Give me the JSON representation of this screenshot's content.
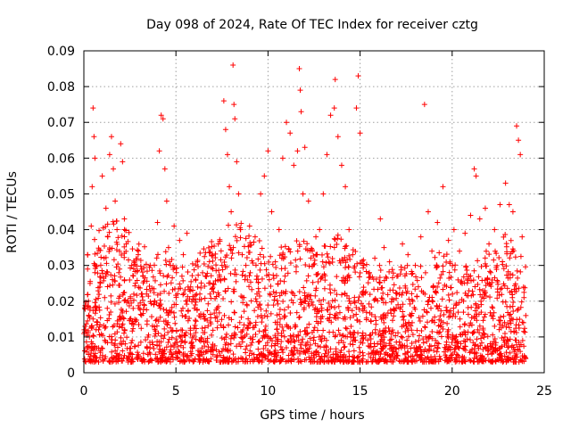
{
  "chart_data": {
    "type": "scatter",
    "title": "Day 098 of 2024, Rate Of TEC Index for receiver cztg",
    "xlabel": "GPS time / hours",
    "ylabel": "ROTI / TECUs",
    "xlim": [
      0,
      25
    ],
    "ylim": [
      0,
      0.09
    ],
    "xticks": [
      0,
      5,
      10,
      15,
      20,
      25
    ],
    "yticks": [
      0,
      0.01,
      0.02,
      0.03,
      0.04,
      0.05,
      0.06,
      0.07,
      0.08,
      0.09
    ],
    "xtick_labels": [
      "0",
      "5",
      "10",
      "15",
      "20",
      "25"
    ],
    "ytick_labels": [
      "0",
      "0.01",
      "0.02",
      "0.03",
      "0.04",
      "0.05",
      "0.06",
      "0.07",
      "0.08",
      "0.09"
    ],
    "grid": true,
    "marker": "+",
    "color": "#ff0000",
    "series": [
      {
        "name": "ROTI",
        "points": [
          [
            0.1,
            0.012
          ],
          [
            0.15,
            0.007
          ],
          [
            0.2,
            0.033
          ],
          [
            0.25,
            0.02
          ],
          [
            0.3,
            0.01
          ],
          [
            0.4,
            0.041
          ],
          [
            0.45,
            0.052
          ],
          [
            0.5,
            0.074
          ],
          [
            0.55,
            0.066
          ],
          [
            0.6,
            0.06
          ],
          [
            0.6,
            0.028
          ],
          [
            0.7,
            0.018
          ],
          [
            0.8,
            0.012
          ],
          [
            0.9,
            0.025
          ],
          [
            1.0,
            0.055
          ],
          [
            1.1,
            0.032
          ],
          [
            1.2,
            0.046
          ],
          [
            1.3,
            0.038
          ],
          [
            1.4,
            0.061
          ],
          [
            1.5,
            0.066
          ],
          [
            1.6,
            0.057
          ],
          [
            1.7,
            0.048
          ],
          [
            1.8,
            0.04
          ],
          [
            1.9,
            0.028
          ],
          [
            2.0,
            0.064
          ],
          [
            2.1,
            0.059
          ],
          [
            2.2,
            0.043
          ],
          [
            2.3,
            0.036
          ],
          [
            2.4,
            0.02
          ],
          [
            2.5,
            0.015
          ],
          [
            2.6,
            0.03
          ],
          [
            2.8,
            0.025
          ],
          [
            3.0,
            0.018
          ],
          [
            3.2,
            0.027
          ],
          [
            3.4,
            0.022
          ],
          [
            3.6,
            0.03
          ],
          [
            3.8,
            0.019
          ],
          [
            4.0,
            0.042
          ],
          [
            4.1,
            0.062
          ],
          [
            4.2,
            0.072
          ],
          [
            4.3,
            0.071
          ],
          [
            4.4,
            0.057
          ],
          [
            4.5,
            0.048
          ],
          [
            4.6,
            0.035
          ],
          [
            4.7,
            0.03
          ],
          [
            4.9,
            0.041
          ],
          [
            5.2,
            0.037
          ],
          [
            5.4,
            0.033
          ],
          [
            5.6,
            0.039
          ],
          [
            5.8,
            0.024
          ],
          [
            6.0,
            0.018
          ],
          [
            6.3,
            0.022
          ],
          [
            6.6,
            0.027
          ],
          [
            7.0,
            0.029
          ],
          [
            7.3,
            0.036
          ],
          [
            7.5,
            0.03
          ],
          [
            7.6,
            0.076
          ],
          [
            7.7,
            0.068
          ],
          [
            7.8,
            0.061
          ],
          [
            7.9,
            0.052
          ],
          [
            8.0,
            0.045
          ],
          [
            8.1,
            0.086
          ],
          [
            8.15,
            0.075
          ],
          [
            8.2,
            0.071
          ],
          [
            8.3,
            0.059
          ],
          [
            8.4,
            0.05
          ],
          [
            8.5,
            0.04
          ],
          [
            8.6,
            0.033
          ],
          [
            8.8,
            0.03
          ],
          [
            9.0,
            0.041
          ],
          [
            9.3,
            0.038
          ],
          [
            9.6,
            0.05
          ],
          [
            9.8,
            0.055
          ],
          [
            10.0,
            0.062
          ],
          [
            10.2,
            0.045
          ],
          [
            10.4,
            0.031
          ],
          [
            10.6,
            0.04
          ],
          [
            10.8,
            0.06
          ],
          [
            11.0,
            0.07
          ],
          [
            11.2,
            0.067
          ],
          [
            11.4,
            0.058
          ],
          [
            11.6,
            0.062
          ],
          [
            11.7,
            0.085
          ],
          [
            11.75,
            0.079
          ],
          [
            11.8,
            0.073
          ],
          [
            11.9,
            0.05
          ],
          [
            12.0,
            0.063
          ],
          [
            12.2,
            0.048
          ],
          [
            12.4,
            0.034
          ],
          [
            12.6,
            0.038
          ],
          [
            12.8,
            0.04
          ],
          [
            13.0,
            0.05
          ],
          [
            13.2,
            0.061
          ],
          [
            13.4,
            0.072
          ],
          [
            13.6,
            0.074
          ],
          [
            13.65,
            0.082
          ],
          [
            13.8,
            0.066
          ],
          [
            14.0,
            0.058
          ],
          [
            14.2,
            0.052
          ],
          [
            14.4,
            0.04
          ],
          [
            14.6,
            0.033
          ],
          [
            14.8,
            0.074
          ],
          [
            14.9,
            0.083
          ],
          [
            15.0,
            0.067
          ],
          [
            15.2,
            0.03
          ],
          [
            15.5,
            0.028
          ],
          [
            15.8,
            0.032
          ],
          [
            16.1,
            0.043
          ],
          [
            16.3,
            0.035
          ],
          [
            16.6,
            0.031
          ],
          [
            17.0,
            0.027
          ],
          [
            17.3,
            0.036
          ],
          [
            17.6,
            0.033
          ],
          [
            18.0,
            0.03
          ],
          [
            18.3,
            0.038
          ],
          [
            18.5,
            0.075
          ],
          [
            18.7,
            0.045
          ],
          [
            18.9,
            0.034
          ],
          [
            19.2,
            0.042
          ],
          [
            19.5,
            0.052
          ],
          [
            19.8,
            0.037
          ],
          [
            20.1,
            0.04
          ],
          [
            20.4,
            0.034
          ],
          [
            20.7,
            0.039
          ],
          [
            21.0,
            0.044
          ],
          [
            21.2,
            0.057
          ],
          [
            21.3,
            0.055
          ],
          [
            21.5,
            0.043
          ],
          [
            21.8,
            0.046
          ],
          [
            22.0,
            0.036
          ],
          [
            22.3,
            0.04
          ],
          [
            22.6,
            0.047
          ],
          [
            22.9,
            0.053
          ],
          [
            23.1,
            0.047
          ],
          [
            23.3,
            0.045
          ],
          [
            23.5,
            0.069
          ],
          [
            23.6,
            0.065
          ],
          [
            23.7,
            0.061
          ],
          [
            23.8,
            0.038
          ],
          [
            23.9,
            0.021
          ],
          [
            24.0,
            0.016
          ]
        ],
        "dense_band": {
          "description": "dense background of points",
          "x_range": [
            0,
            24
          ],
          "y_min": 0.003,
          "y_max_typical": 0.03
        }
      }
    ]
  }
}
